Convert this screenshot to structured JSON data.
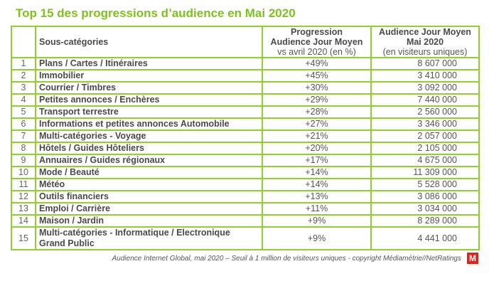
{
  "title": "Top 15 des progressions d’audience en Mai 2020",
  "headers": {
    "category": "Sous-catégories",
    "progression_line1": "Progression",
    "progression_line2": "Audience Jour Moyen",
    "progression_line3": "vs avril 2020 (en %)",
    "audience_line1": "Audience Jour Moyen",
    "audience_line2": "Mai 2020",
    "audience_line3": "(en visiteurs uniques)"
  },
  "rows": [
    {
      "rank": "1",
      "category": "Plans / Cartes / Itinéraires",
      "progression": "+49%",
      "audience": "8 607 000"
    },
    {
      "rank": "2",
      "category": "Immobilier",
      "progression": "+45%",
      "audience": "3 410 000"
    },
    {
      "rank": "3",
      "category": "Courrier / Timbres",
      "progression": "+30%",
      "audience": "3 092 000"
    },
    {
      "rank": "4",
      "category": "Petites annonces / Enchères",
      "progression": "+29%",
      "audience": "7 440 000"
    },
    {
      "rank": "5",
      "category": "Transport terrestre",
      "progression": "+28%",
      "audience": "2 560 000"
    },
    {
      "rank": "6",
      "category": "Informations et petites annonces Automobile",
      "progression": "+27%",
      "audience": "3 346 000"
    },
    {
      "rank": "7",
      "category": "Multi-catégories - Voyage",
      "progression": "+21%",
      "audience": "2 057 000"
    },
    {
      "rank": "8",
      "category": "Hôtels / Guides Hôteliers",
      "progression": "+20%",
      "audience": "2 105 000"
    },
    {
      "rank": "9",
      "category": "Annuaires / Guides régionaux",
      "progression": "+17%",
      "audience": "4 675 000"
    },
    {
      "rank": "10",
      "category": "Mode / Beauté",
      "progression": "+14%",
      "audience": "11 309 000"
    },
    {
      "rank": "11",
      "category": "Météo",
      "progression": "+14%",
      "audience": "5 528 000"
    },
    {
      "rank": "12",
      "category": "Outils financiers",
      "progression": "+13%",
      "audience": "3 086 000"
    },
    {
      "rank": "13",
      "category": "Emploi / Carrière",
      "progression": "+11%",
      "audience": "3 034 000"
    },
    {
      "rank": "14",
      "category": "Maison / Jardin",
      "progression": "+9%",
      "audience": "8 289 000"
    },
    {
      "rank": "15",
      "category": "Multi-catégories - Informatique / Electronique Grand Public",
      "progression": "+9%",
      "audience": "4 441 000"
    }
  ],
  "footer": "Audience Internet Global, mai 2020 – Seuil à 1 million de visiteurs uniques  - copyright Médiamétrie//NetRatings",
  "logo": "M",
  "colors": {
    "accent": "#7dc41a",
    "border": "#8fd12a",
    "logo": "#e2231a"
  }
}
